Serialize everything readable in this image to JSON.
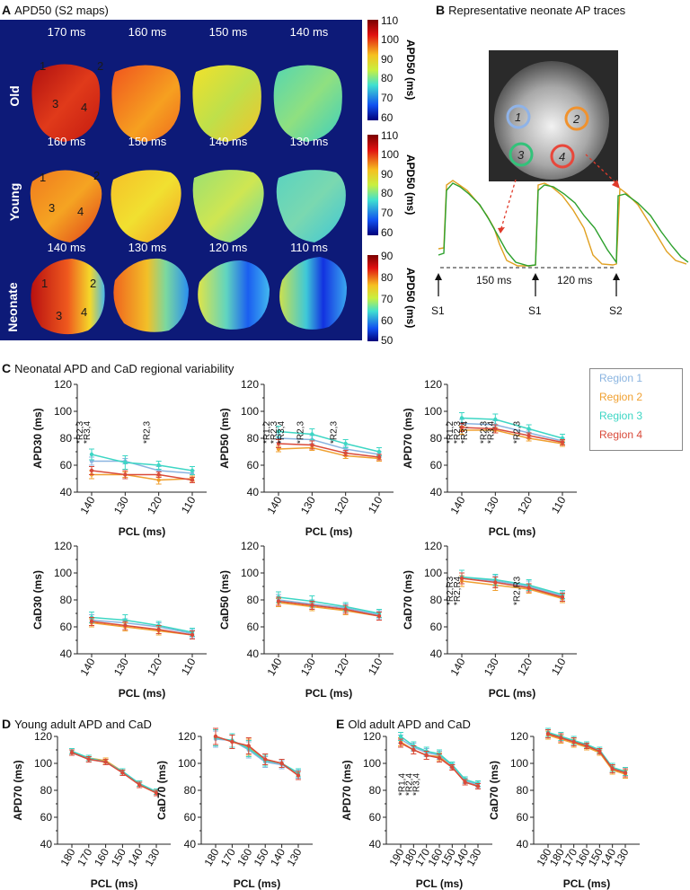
{
  "panels": {
    "A": {
      "letter": "A",
      "title": "APD50 (S2 maps)"
    },
    "B": {
      "letter": "B",
      "title": "Representative neonate AP traces"
    },
    "C": {
      "letter": "C",
      "title": "Neonatal APD and CaD regional variability"
    },
    "D": {
      "letter": "D",
      "title": "Young adult APD and CaD"
    },
    "E": {
      "letter": "E",
      "title": "Old adult APD and CaD"
    }
  },
  "maps": {
    "rows": [
      {
        "label": "Old",
        "pcl_labels": [
          "170 ms",
          "160 ms",
          "150 ms",
          "140 ms"
        ],
        "regions": [
          "1",
          "2",
          "3",
          "4"
        ],
        "colorbar_ticks": [
          "110",
          "100",
          "90",
          "80",
          "70",
          "60"
        ],
        "colorbar_label": "APD50 (ms)"
      },
      {
        "label": "Young",
        "pcl_labels": [
          "160 ms",
          "150 ms",
          "140 ms",
          "130 ms"
        ],
        "regions": [
          "1",
          "2",
          "3",
          "4"
        ],
        "colorbar_ticks": [
          "110",
          "100",
          "90",
          "80",
          "70",
          "60"
        ],
        "colorbar_label": "APD50 (ms)"
      },
      {
        "label": "Neonate",
        "pcl_labels": [
          "140 ms",
          "130 ms",
          "120 ms",
          "110 ms"
        ],
        "regions": [
          "1",
          "2",
          "3",
          "4"
        ],
        "colorbar_ticks": [
          "90",
          "80",
          "70",
          "60",
          "50"
        ],
        "colorbar_label": "APD50 (ms)"
      }
    ]
  },
  "traces": {
    "regions": [
      "1",
      "2",
      "3",
      "4"
    ],
    "region_colors": [
      "#8fb3e8",
      "#f0922e",
      "#33c27a",
      "#e8473b"
    ],
    "intervals": [
      "150 ms",
      "120 ms"
    ],
    "stim_labels": [
      "S1",
      "S1",
      "S2"
    ],
    "trace_colors": [
      "#e0a020",
      "#2ca02c"
    ]
  },
  "legend": {
    "items": [
      "Region 1",
      "Region 2",
      "Region 3",
      "Region 4"
    ],
    "colors": [
      "#8ab4e0",
      "#f0a030",
      "#3dd6c4",
      "#d94a3a"
    ]
  },
  "chart_data": [
    {
      "id": "apd30",
      "type": "line",
      "ylabel": "APD30 (ms)",
      "xlabel": "PCL (ms)",
      "categories": [
        "140",
        "130",
        "120",
        "110"
      ],
      "ylim": [
        40,
        120
      ],
      "yticks": [
        40,
        60,
        80,
        100,
        120
      ],
      "series": [
        {
          "name": "Region 1",
          "values": [
            63,
            63,
            56,
            54
          ],
          "err": [
            3,
            2,
            3,
            2
          ]
        },
        {
          "name": "Region 2",
          "values": [
            53,
            53,
            49,
            50
          ],
          "err": [
            3,
            2,
            3,
            2
          ]
        },
        {
          "name": "Region 3",
          "values": [
            68,
            62,
            60,
            56
          ],
          "err": [
            4,
            5,
            3,
            3
          ]
        },
        {
          "name": "Region 4",
          "values": [
            56,
            53,
            53,
            49
          ],
          "err": [
            3,
            3,
            2,
            2
          ]
        }
      ],
      "annotations": [
        {
          "x": "140",
          "lines": [
            "*R2,3",
            "*R3,4"
          ]
        },
        {
          "x": "120",
          "lines": [
            "*R2,3"
          ]
        }
      ]
    },
    {
      "id": "apd50",
      "type": "line",
      "ylabel": "APD50 (ms)",
      "xlabel": "PCL (ms)",
      "categories": [
        "140",
        "130",
        "120",
        "110"
      ],
      "ylim": [
        40,
        120
      ],
      "yticks": [
        40,
        60,
        80,
        100,
        120
      ],
      "series": [
        {
          "name": "Region 1",
          "values": [
            80,
            79,
            72,
            68
          ],
          "err": [
            3,
            3,
            2,
            2
          ]
        },
        {
          "name": "Region 2",
          "values": [
            72,
            73,
            67,
            65
          ],
          "err": [
            2,
            2,
            2,
            2
          ]
        },
        {
          "name": "Region 3",
          "values": [
            85,
            83,
            76,
            70
          ],
          "err": [
            4,
            4,
            3,
            3
          ]
        },
        {
          "name": "Region 4",
          "values": [
            76,
            75,
            69,
            66
          ],
          "err": [
            3,
            3,
            2,
            2
          ]
        }
      ],
      "annotations": [
        {
          "x": "140",
          "lines": [
            "*R1,2",
            "*R2,3",
            "*R3,4"
          ]
        },
        {
          "x": "130",
          "lines": [
            "*R2,3"
          ]
        },
        {
          "x": "120",
          "lines": [
            "*R2,3"
          ]
        }
      ]
    },
    {
      "id": "apd70",
      "type": "line",
      "ylabel": "APD70 (ms)",
      "xlabel": "PCL (ms)",
      "categories": [
        "140",
        "130",
        "120",
        "110"
      ],
      "ylim": [
        40,
        120
      ],
      "yticks": [
        40,
        60,
        80,
        100,
        120
      ],
      "series": [
        {
          "name": "Region 1",
          "values": [
            91,
            90,
            84,
            78
          ],
          "err": [
            3,
            3,
            2,
            2
          ]
        },
        {
          "name": "Region 2",
          "values": [
            86,
            86,
            80,
            76
          ],
          "err": [
            3,
            2,
            2,
            2
          ]
        },
        {
          "name": "Region 3",
          "values": [
            95,
            94,
            87,
            80
          ],
          "err": [
            4,
            4,
            3,
            3
          ]
        },
        {
          "name": "Region 4",
          "values": [
            88,
            87,
            82,
            77
          ],
          "err": [
            3,
            3,
            2,
            2
          ]
        }
      ],
      "annotations": [
        {
          "x": "140",
          "lines": [
            "*R1,2",
            "*R2,3",
            "*R3,4"
          ]
        },
        {
          "x": "130",
          "lines": [
            "*R2,3",
            "*R3,4"
          ]
        },
        {
          "x": "120",
          "lines": [
            "*R2,3"
          ]
        }
      ]
    },
    {
      "id": "cad30",
      "type": "line",
      "ylabel": "CaD30 (ms)",
      "xlabel": "PCL (ms)",
      "categories": [
        "140",
        "130",
        "120",
        "110"
      ],
      "ylim": [
        40,
        120
      ],
      "yticks": [
        40,
        60,
        80,
        100,
        120
      ],
      "series": [
        {
          "name": "Region 1",
          "values": [
            65,
            63,
            60,
            55
          ],
          "err": [
            4,
            3,
            3,
            3
          ]
        },
        {
          "name": "Region 2",
          "values": [
            63,
            60,
            57,
            54
          ],
          "err": [
            3,
            3,
            3,
            3
          ]
        },
        {
          "name": "Region 3",
          "values": [
            67,
            65,
            61,
            56
          ],
          "err": [
            4,
            4,
            3,
            3
          ]
        },
        {
          "name": "Region 4",
          "values": [
            64,
            61,
            58,
            54
          ],
          "err": [
            3,
            3,
            3,
            3
          ]
        }
      ],
      "annotations": []
    },
    {
      "id": "cad50",
      "type": "line",
      "ylabel": "CaD50 (ms)",
      "xlabel": "PCL (ms)",
      "categories": [
        "140",
        "130",
        "120",
        "110"
      ],
      "ylim": [
        40,
        120
      ],
      "yticks": [
        40,
        60,
        80,
        100,
        120
      ],
      "series": [
        {
          "name": "Region 1",
          "values": [
            80,
            77,
            74,
            69
          ],
          "err": [
            4,
            3,
            3,
            3
          ]
        },
        {
          "name": "Region 2",
          "values": [
            78,
            75,
            72,
            68
          ],
          "err": [
            3,
            3,
            3,
            3
          ]
        },
        {
          "name": "Region 3",
          "values": [
            82,
            79,
            75,
            70
          ],
          "err": [
            4,
            4,
            3,
            3
          ]
        },
        {
          "name": "Region 4",
          "values": [
            79,
            76,
            73,
            68
          ],
          "err": [
            3,
            3,
            3,
            3
          ]
        }
      ],
      "annotations": []
    },
    {
      "id": "cad70",
      "type": "line",
      "ylabel": "CaD70 (ms)",
      "xlabel": "PCL (ms)",
      "categories": [
        "140",
        "130",
        "120",
        "110"
      ],
      "ylim": [
        40,
        120
      ],
      "yticks": [
        40,
        60,
        80,
        100,
        120
      ],
      "series": [
        {
          "name": "Region 1",
          "values": [
            97,
            94,
            90,
            83
          ],
          "err": [
            5,
            4,
            4,
            3
          ]
        },
        {
          "name": "Region 2",
          "values": [
            94,
            91,
            88,
            81
          ],
          "err": [
            4,
            4,
            3,
            3
          ]
        },
        {
          "name": "Region 3",
          "values": [
            97,
            95,
            91,
            84
          ],
          "err": [
            5,
            4,
            4,
            3
          ]
        },
        {
          "name": "Region 4",
          "values": [
            96,
            93,
            89,
            82
          ],
          "err": [
            4,
            4,
            3,
            3
          ]
        }
      ],
      "annotations": [
        {
          "x": "140",
          "lines": [
            "*R2,R3",
            "*R2,R4"
          ]
        },
        {
          "x": "120",
          "lines": [
            "*R2,R3"
          ]
        }
      ]
    },
    {
      "id": "young_apd70",
      "type": "line",
      "ylabel": "APD70 (ms)",
      "xlabel": "PCL (ms)",
      "categories": [
        "180",
        "170",
        "160",
        "150",
        "140",
        "130"
      ],
      "ylim": [
        40,
        120
      ],
      "yticks": [
        40,
        60,
        80,
        100,
        120
      ],
      "series": [
        {
          "name": "Region 1",
          "values": [
            108,
            103,
            101,
            94,
            85,
            79
          ],
          "err": [
            2,
            2,
            2,
            2,
            2,
            2
          ]
        },
        {
          "name": "Region 2",
          "values": [
            108,
            104,
            102,
            94,
            84,
            78
          ],
          "err": [
            2,
            2,
            2,
            2,
            2,
            2
          ]
        },
        {
          "name": "Region 3",
          "values": [
            109,
            104,
            101,
            94,
            85,
            79
          ],
          "err": [
            2,
            2,
            2,
            2,
            2,
            2
          ]
        },
        {
          "name": "Region 4",
          "values": [
            108,
            103,
            101,
            93,
            84,
            78
          ],
          "err": [
            2,
            2,
            2,
            2,
            2,
            2
          ]
        }
      ],
      "annotations": []
    },
    {
      "id": "young_cad70",
      "type": "line",
      "ylabel": "CaD70 (ms)",
      "xlabel": "PCL (ms)",
      "categories": [
        "180",
        "170",
        "160",
        "150",
        "140",
        "130"
      ],
      "ylim": [
        40,
        120
      ],
      "yticks": [
        40,
        60,
        80,
        100,
        120
      ],
      "series": [
        {
          "name": "Region 1",
          "values": [
            118,
            117,
            110,
            101,
            99,
            92
          ],
          "err": [
            6,
            5,
            6,
            4,
            3,
            3
          ]
        },
        {
          "name": "Region 2",
          "values": [
            120,
            116,
            112,
            103,
            100,
            91
          ],
          "err": [
            6,
            5,
            6,
            4,
            3,
            3
          ]
        },
        {
          "name": "Region 3",
          "values": [
            119,
            117,
            111,
            102,
            100,
            93
          ],
          "err": [
            6,
            5,
            6,
            4,
            3,
            3
          ]
        },
        {
          "name": "Region 4",
          "values": [
            120,
            116,
            113,
            103,
            100,
            91
          ],
          "err": [
            6,
            5,
            6,
            4,
            3,
            3
          ]
        }
      ],
      "annotations": []
    },
    {
      "id": "old_apd70",
      "type": "line",
      "ylabel": "APD70 (ms)",
      "xlabel": "PCL (ms)",
      "categories": [
        "190",
        "180",
        "170",
        "160",
        "150",
        "140",
        "130"
      ],
      "ylim": [
        40,
        120
      ],
      "yticks": [
        40,
        60,
        80,
        100,
        120
      ],
      "series": [
        {
          "name": "Region 1",
          "values": [
            118,
            112,
            108,
            106,
            98,
            87,
            84
          ],
          "err": [
            3,
            3,
            3,
            3,
            2,
            2,
            2
          ]
        },
        {
          "name": "Region 2",
          "values": [
            116,
            110,
            106,
            105,
            97,
            86,
            83
          ],
          "err": [
            3,
            3,
            3,
            3,
            2,
            2,
            2
          ]
        },
        {
          "name": "Region 3",
          "values": [
            120,
            113,
            109,
            107,
            99,
            88,
            85
          ],
          "err": [
            3,
            3,
            3,
            3,
            2,
            2,
            2
          ]
        },
        {
          "name": "Region 4",
          "values": [
            115,
            110,
            106,
            104,
            97,
            86,
            83
          ],
          "err": [
            3,
            3,
            3,
            3,
            2,
            2,
            2
          ]
        }
      ],
      "annotations": [
        {
          "x": "180",
          "lines": [
            "*R1,4",
            "*R2,4",
            "*R3,4"
          ]
        }
      ]
    },
    {
      "id": "old_cad70",
      "type": "line",
      "ylabel": "CaD70 (ms)",
      "xlabel": "PCL (ms)",
      "categories": [
        "190",
        "180",
        "170",
        "160",
        "150",
        "140",
        "130"
      ],
      "ylim": [
        40,
        120
      ],
      "yticks": [
        40,
        60,
        80,
        100,
        120
      ],
      "series": [
        {
          "name": "Region 1",
          "values": [
            122,
            119,
            116,
            113,
            109,
            96,
            93
          ],
          "err": [
            3,
            3,
            3,
            2,
            2,
            3,
            3
          ]
        },
        {
          "name": "Region 2",
          "values": [
            121,
            118,
            115,
            112,
            108,
            95,
            92
          ],
          "err": [
            3,
            3,
            3,
            2,
            2,
            3,
            3
          ]
        },
        {
          "name": "Region 3",
          "values": [
            123,
            120,
            117,
            114,
            110,
            97,
            94
          ],
          "err": [
            3,
            3,
            3,
            2,
            2,
            3,
            3
          ]
        },
        {
          "name": "Region 4",
          "values": [
            122,
            119,
            116,
            113,
            109,
            96,
            93
          ],
          "err": [
            3,
            3,
            3,
            2,
            2,
            3,
            3
          ]
        }
      ],
      "annotations": []
    }
  ]
}
